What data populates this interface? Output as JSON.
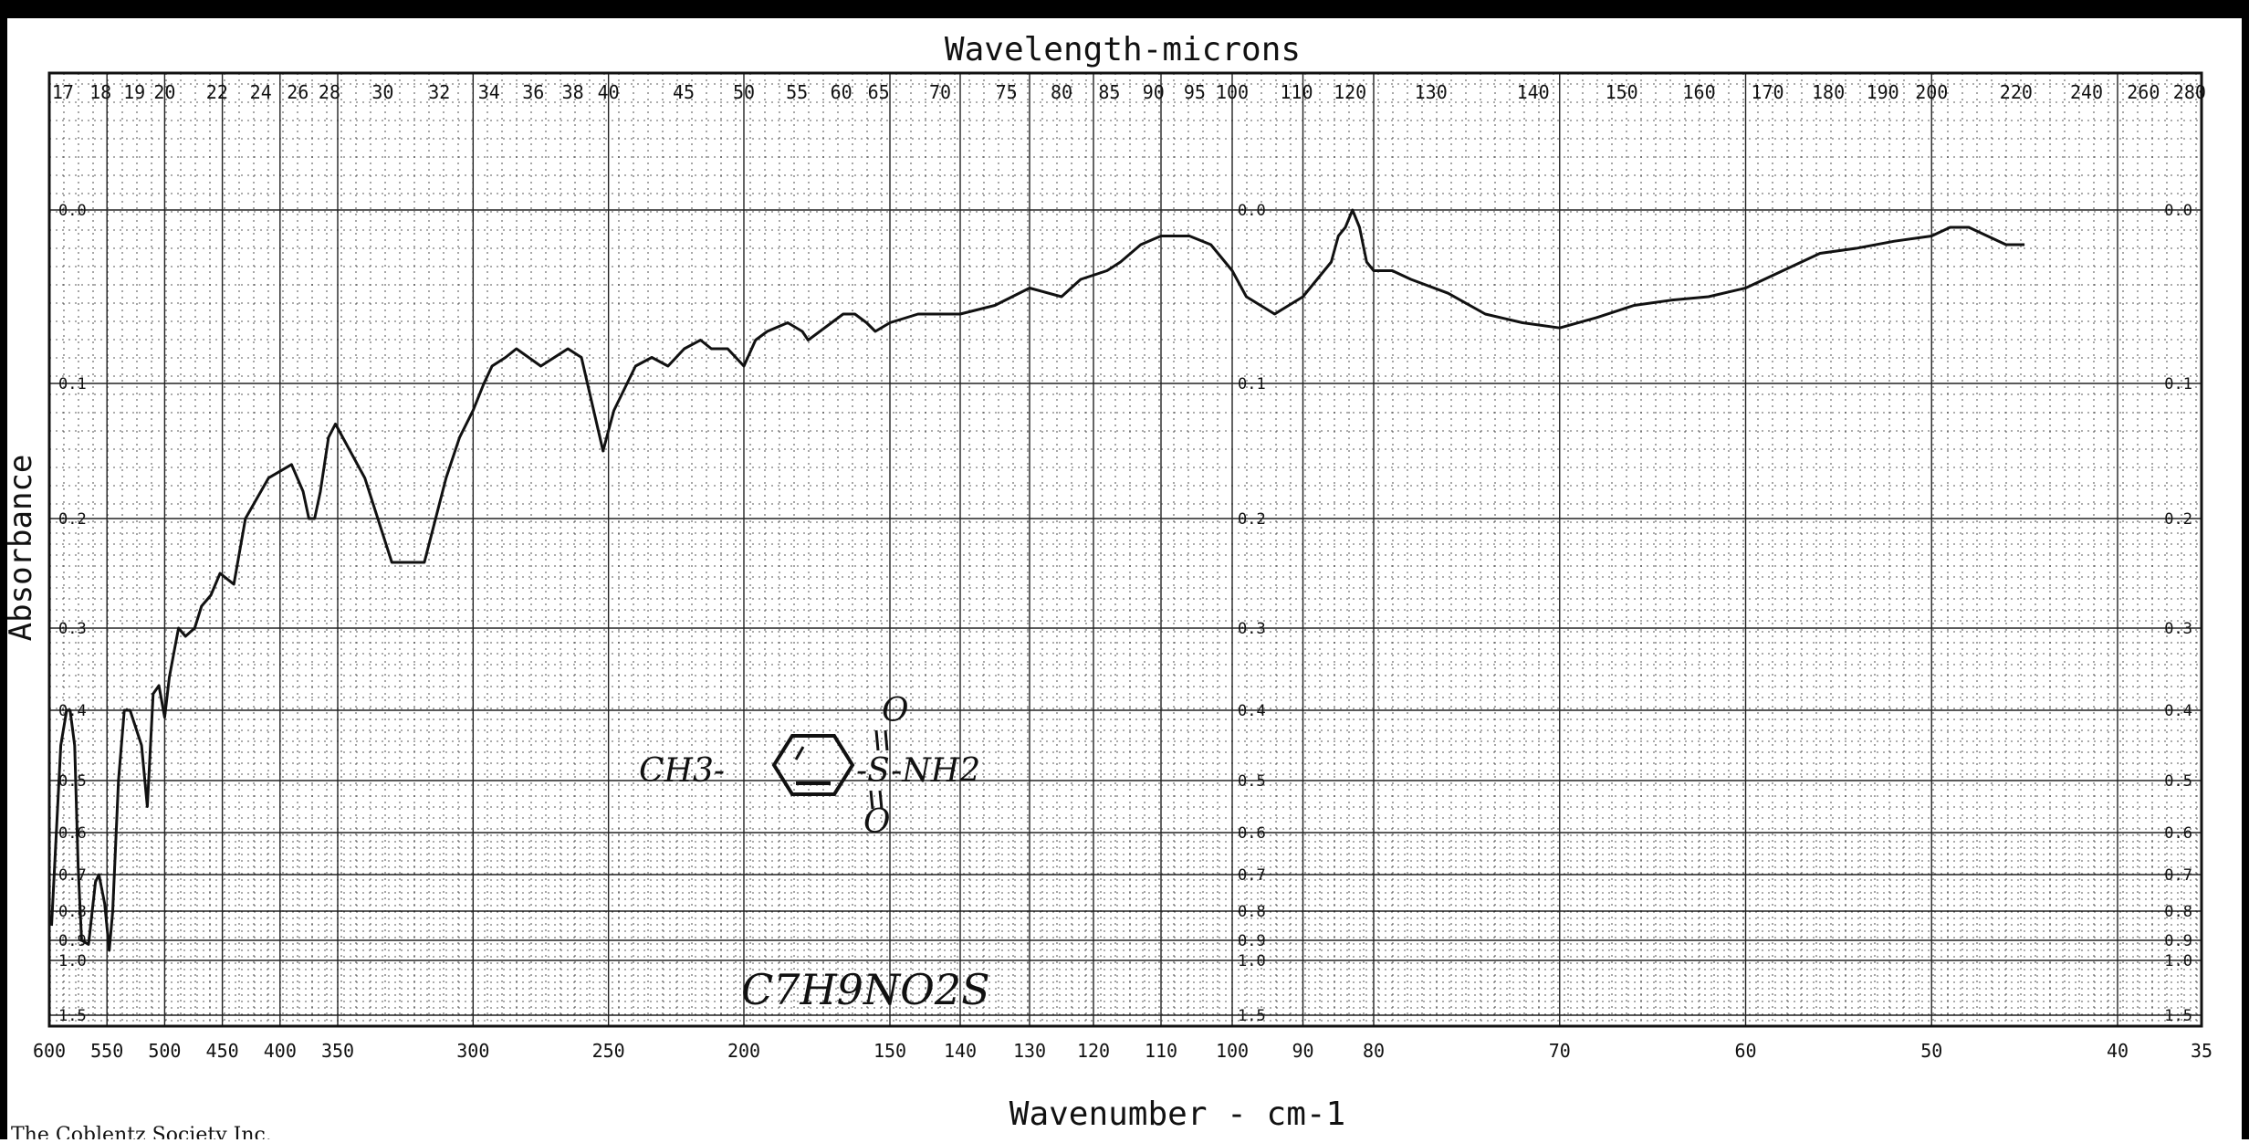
{
  "chart_data": {
    "type": "line",
    "title": "Wavelength-microns",
    "xlabel": "Wavenumber - cm-1",
    "ylabel": "Absorbance",
    "x_reversed": true,
    "xlim": [
      600,
      35
    ],
    "ylim": [
      0,
      1.5
    ],
    "grid": true,
    "legend": "none",
    "x_ticks": [
      600,
      550,
      500,
      450,
      400,
      350,
      300,
      250,
      200,
      150,
      140,
      130,
      120,
      110,
      100,
      90,
      80,
      70,
      60,
      50,
      40,
      35
    ],
    "x_tick_labels": [
      "600",
      "550",
      "500",
      "450",
      "400",
      "350",
      "300",
      "250",
      "200",
      "150",
      "140",
      "130",
      "120",
      "110",
      "100",
      "90",
      "80",
      "70",
      "60",
      "50",
      "40",
      "35"
    ],
    "wavelength_ticks": [
      "17",
      "18",
      "19",
      "20",
      "22",
      "24",
      "26",
      "28",
      "30",
      "32",
      "34",
      "36",
      "38",
      "40",
      "45",
      "50",
      "55",
      "60",
      "65",
      "70",
      "75",
      "80",
      "85",
      "90",
      "95",
      "100",
      "110",
      "120",
      "130",
      "140",
      "150",
      "160",
      "170",
      "180",
      "190",
      "200",
      "220",
      "240",
      "260",
      "280"
    ],
    "y_ticks": [
      0.0,
      0.1,
      0.2,
      0.3,
      0.4,
      0.5,
      0.6,
      0.7,
      0.8,
      0.9,
      1.0,
      1.5
    ],
    "y_tick_labels": [
      "0.0",
      "0.1",
      "0.2",
      "0.3",
      "0.4",
      "0.5",
      "0.6",
      "0.7",
      "0.8",
      "0.9",
      "1.0",
      "1.5"
    ],
    "line_color": "#111111",
    "series": [
      {
        "x": [
          598,
          590,
          585,
          582,
          578,
          575,
          572,
          566,
          560,
          557,
          552,
          548,
          545,
          540,
          535,
          530,
          520,
          515,
          510,
          505,
          500,
          496,
          492,
          488,
          482,
          474,
          468,
          460,
          452,
          440,
          430,
          410,
          390,
          380,
          375,
          370,
          365,
          358,
          352,
          340,
          330,
          318,
          310,
          305,
          300,
          296,
          293,
          288,
          284,
          275,
          265,
          260,
          252,
          248,
          240,
          234,
          228,
          222,
          216,
          212,
          206,
          200,
          196,
          192,
          185,
          180,
          178,
          170,
          166,
          162,
          158,
          155,
          150,
          146,
          140,
          135,
          130,
          125,
          122,
          118,
          116,
          113,
          110,
          106,
          103,
          100,
          98,
          96,
          94,
          92,
          90,
          88,
          86,
          85,
          84,
          83,
          82,
          81,
          80,
          79,
          78,
          76,
          74,
          72,
          70,
          68,
          66,
          64,
          62,
          60,
          58,
          56,
          54,
          52,
          50,
          49,
          48,
          47,
          46,
          45
        ],
        "y": [
          0.85,
          0.45,
          0.4,
          0.4,
          0.45,
          0.68,
          0.9,
          0.92,
          0.72,
          0.7,
          0.78,
          0.95,
          0.8,
          0.5,
          0.4,
          0.4,
          0.45,
          0.55,
          0.38,
          0.37,
          0.41,
          0.36,
          0.33,
          0.3,
          0.31,
          0.3,
          0.28,
          0.27,
          0.25,
          0.26,
          0.2,
          0.17,
          0.16,
          0.18,
          0.2,
          0.2,
          0.18,
          0.14,
          0.13,
          0.17,
          0.24,
          0.24,
          0.17,
          0.14,
          0.12,
          0.1,
          0.09,
          0.085,
          0.08,
          0.09,
          0.08,
          0.085,
          0.15,
          0.12,
          0.09,
          0.085,
          0.09,
          0.08,
          0.075,
          0.08,
          0.08,
          0.09,
          0.075,
          0.07,
          0.065,
          0.07,
          0.075,
          0.065,
          0.06,
          0.06,
          0.065,
          0.07,
          0.065,
          0.06,
          0.06,
          0.055,
          0.045,
          0.05,
          0.04,
          0.035,
          0.03,
          0.02,
          0.015,
          0.015,
          0.02,
          0.035,
          0.05,
          0.055,
          0.06,
          0.055,
          0.05,
          0.04,
          0.03,
          0.015,
          0.01,
          0.0,
          0.01,
          0.03,
          0.035,
          0.035,
          0.04,
          0.048,
          0.06,
          0.065,
          0.068,
          0.062,
          0.055,
          0.052,
          0.05,
          0.045,
          0.035,
          0.025,
          0.022,
          0.018,
          0.015,
          0.01,
          0.01,
          0.015,
          0.02,
          0.02
        ]
      }
    ],
    "annotations": {
      "structure_left": "CH3-",
      "structure_right": "-S-NH2",
      "structure_oxygen": "O",
      "formula": "C7H9NO2S"
    }
  },
  "footer": {
    "text": "The Coblentz Society Inc."
  }
}
